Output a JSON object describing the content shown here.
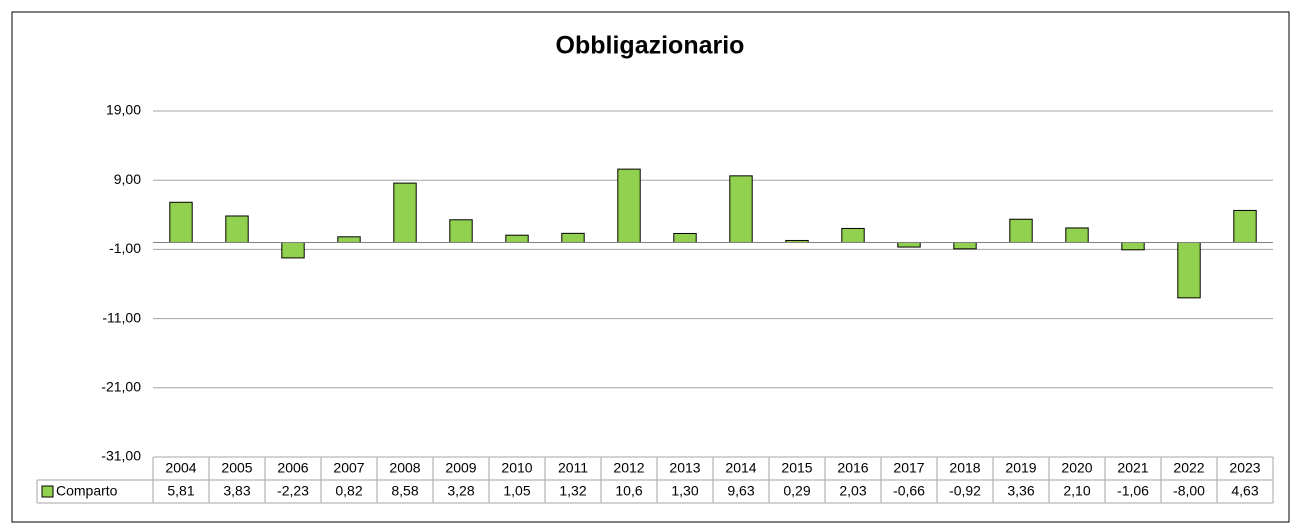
{
  "chart_data": {
    "type": "bar",
    "title": "Obbligazionario",
    "categories": [
      "2004",
      "2005",
      "2006",
      "2007",
      "2008",
      "2009",
      "2010",
      "2011",
      "2012",
      "2013",
      "2014",
      "2015",
      "2016",
      "2017",
      "2018",
      "2019",
      "2020",
      "2021",
      "2022",
      "2023"
    ],
    "series": [
      {
        "name": "Comparto",
        "color": "#92d050",
        "values": [
          5.81,
          3.83,
          -2.23,
          0.82,
          8.58,
          3.28,
          1.05,
          1.32,
          10.6,
          1.3,
          9.63,
          0.29,
          2.03,
          -0.66,
          -0.92,
          3.36,
          2.1,
          -1.06,
          -8.0,
          4.63
        ],
        "value_labels": [
          "5,81",
          "3,83",
          "-2,23",
          "0,82",
          "8,58",
          "3,28",
          "1,05",
          "1,32",
          "10,6",
          "1,30",
          "9,63",
          "0,29",
          "2,03",
          "-0,66",
          "-0,92",
          "3,36",
          "2,10",
          "-1,06",
          "-8,00",
          "4,63"
        ]
      }
    ],
    "ylim": [
      -31,
      19
    ],
    "yticks": [
      {
        "value": -31,
        "label": "-31,00"
      },
      {
        "value": -21,
        "label": "-21,00"
      },
      {
        "value": -11,
        "label": "-11,00"
      },
      {
        "value": -1,
        "label": "-1,00"
      },
      {
        "value": 9,
        "label": "9,00"
      },
      {
        "value": 19,
        "label": "19,00"
      }
    ],
    "grid": true,
    "data_table": true
  }
}
